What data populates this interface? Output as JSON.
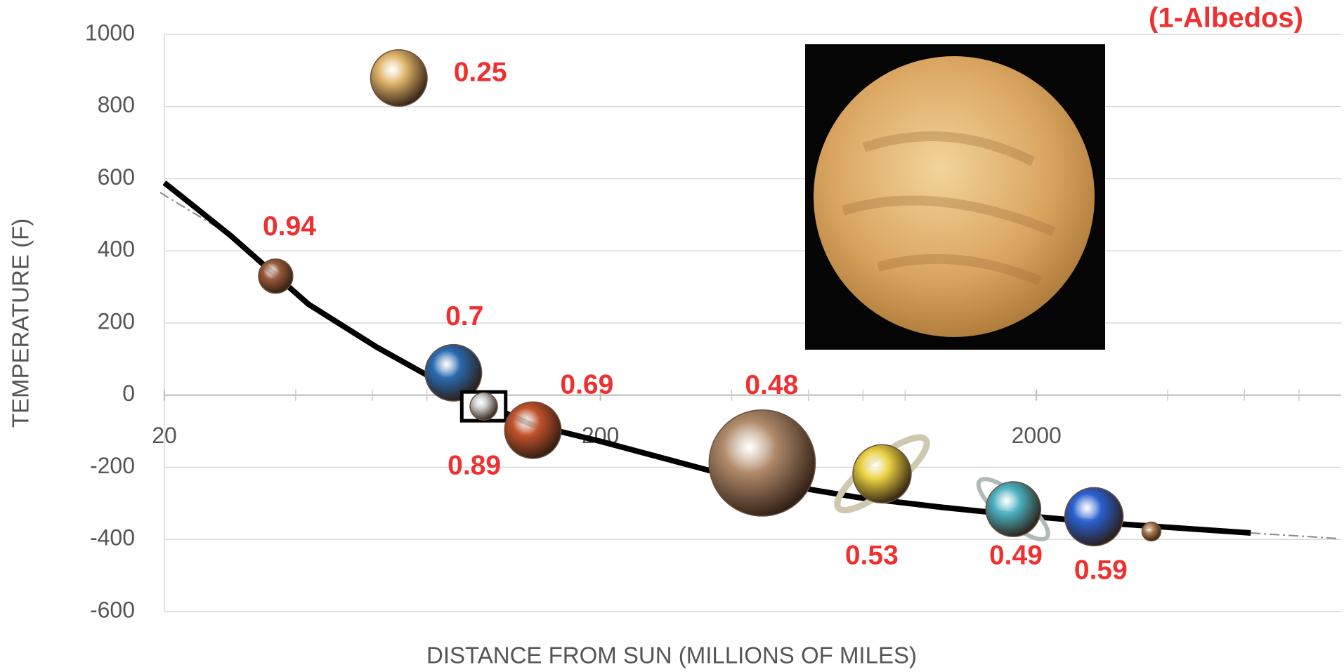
{
  "chart_data": {
    "type": "scatter",
    "title": "(1-Albedos)",
    "x_label": "DISTANCE FROM SUN (MILLIONS OF MILES)",
    "y_label": "TEMPERATURE (F)",
    "x_scale": "log",
    "xlim": [
      20,
      10000
    ],
    "xticks": [
      20,
      200,
      2000
    ],
    "xminor_ticks": [
      40,
      60,
      80,
      100,
      400,
      600,
      800,
      1000,
      4000,
      6000,
      8000
    ],
    "ylim": [
      -600,
      1000
    ],
    "yticks": [
      -600,
      -400,
      -200,
      0,
      200,
      400,
      600,
      800,
      1000
    ],
    "grid": true,
    "x": [
      36,
      69,
      92,
      108,
      140,
      470,
      885,
      1770,
      2710,
      3670
    ],
    "values": [
      330,
      879,
      62,
      -31,
      -97,
      -188,
      -218,
      -316,
      -337,
      -378
    ],
    "albedo_labels": [
      0.94,
      0.25,
      0.7,
      0.89,
      0.69,
      0.48,
      0.53,
      0.49,
      0.59,
      null
    ],
    "colors": [
      "#9a5a3a",
      "#e0b46a",
      "#2a6ab0",
      "#c8c8c8",
      "#c0522a",
      "#b08a6a",
      "#e8d040",
      "#4ab0c0",
      "#2a60d0",
      "#b08050"
    ],
    "trend": {
      "color": "#000000",
      "x": [
        20,
        28.4,
        42.8,
        61.4,
        92.3,
        138.6,
        200,
        393,
        773,
        1216,
        1911,
        3007,
        6200
      ],
      "values": [
        589,
        442,
        252,
        133,
        14,
        -81,
        -128,
        -223,
        -283,
        -311,
        -335,
        -356,
        -382
      ]
    },
    "trend_extension": {
      "color": "#888888",
      "x": [
        6200,
        9740
      ],
      "values": [
        -382,
        -397
      ]
    }
  }
}
